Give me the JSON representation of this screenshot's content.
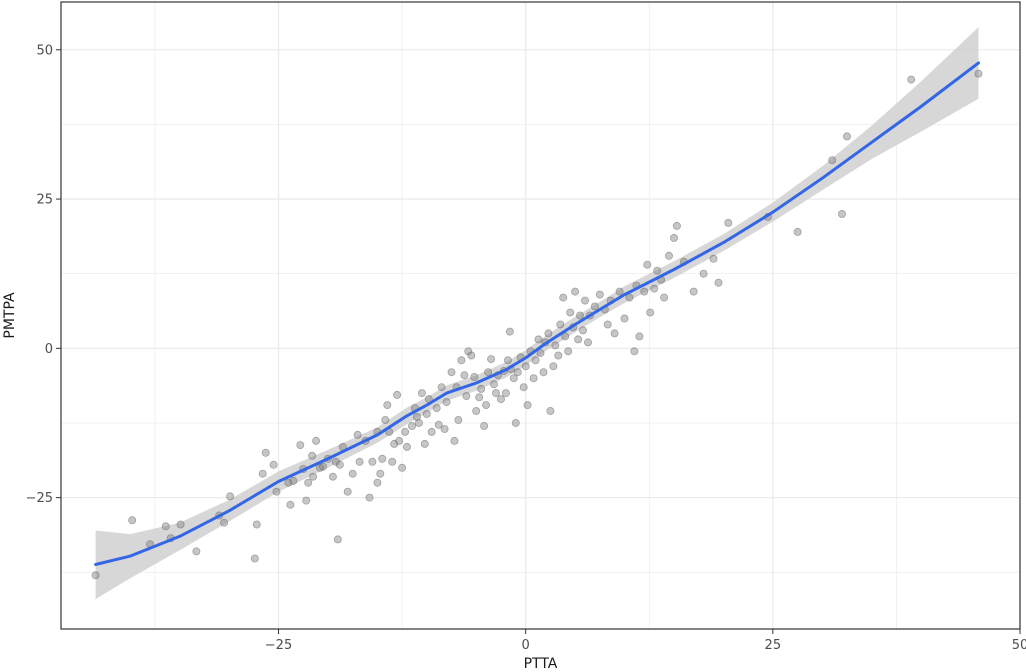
{
  "chart_data": {
    "type": "scatter",
    "title": "",
    "xlabel": "PTTA",
    "ylabel": "PMTPA",
    "xlim": [
      -47,
      50
    ],
    "ylim": [
      -47,
      58
    ],
    "x_ticks": [
      -25,
      0,
      25,
      50
    ],
    "y_ticks": [
      -25,
      0,
      25,
      50
    ],
    "x_tick_labels": [
      "−25",
      "0",
      "25",
      "50"
    ],
    "y_tick_labels": [
      "−25",
      "0",
      "25",
      "50"
    ],
    "grid": true,
    "legend": "none",
    "colors": {
      "points": "#808080",
      "smooth_line": "#3366e6",
      "ribbon": "#d0d0d0",
      "grid": "#ebebeb",
      "panel_border": "#333333"
    },
    "series": [
      {
        "kind": "points",
        "points": [
          [
            -43.5,
            -38.0
          ],
          [
            -39.8,
            -28.8
          ],
          [
            -38.0,
            -32.8
          ],
          [
            -36.4,
            -29.8
          ],
          [
            -35.9,
            -31.8
          ],
          [
            -34.9,
            -29.5
          ],
          [
            -33.3,
            -34.0
          ],
          [
            -31.0,
            -28.0
          ],
          [
            -30.5,
            -29.2
          ],
          [
            -29.9,
            -24.8
          ],
          [
            -27.4,
            -35.2
          ],
          [
            -27.2,
            -29.5
          ],
          [
            -26.6,
            -21.0
          ],
          [
            -26.3,
            -17.5
          ],
          [
            -25.5,
            -19.5
          ],
          [
            -25.2,
            -24.0
          ],
          [
            -24.0,
            -22.5
          ],
          [
            -23.8,
            -26.2
          ],
          [
            -23.5,
            -22.2
          ],
          [
            -22.8,
            -16.2
          ],
          [
            -22.5,
            -20.2
          ],
          [
            -22.2,
            -25.5
          ],
          [
            -22.0,
            -22.5
          ],
          [
            -21.6,
            -18.0
          ],
          [
            -21.5,
            -21.5
          ],
          [
            -21.2,
            -15.5
          ],
          [
            -20.8,
            -20.0
          ],
          [
            -20.5,
            -19.8
          ],
          [
            -20.0,
            -18.5
          ],
          [
            -19.5,
            -21.5
          ],
          [
            -19.2,
            -19.0
          ],
          [
            -19.0,
            -32.0
          ],
          [
            -18.8,
            -19.5
          ],
          [
            -18.5,
            -16.5
          ],
          [
            -18.0,
            -24.0
          ],
          [
            -17.5,
            -21.0
          ],
          [
            -17.0,
            -14.5
          ],
          [
            -16.8,
            -19.0
          ],
          [
            -16.2,
            -15.5
          ],
          [
            -15.8,
            -25.0
          ],
          [
            -15.5,
            -19.0
          ],
          [
            -15.0,
            -14.0
          ],
          [
            -15.0,
            -22.5
          ],
          [
            -14.7,
            -21.0
          ],
          [
            -14.5,
            -18.5
          ],
          [
            -14.2,
            -12.0
          ],
          [
            -14.0,
            -9.5
          ],
          [
            -13.8,
            -14.0
          ],
          [
            -13.5,
            -19.0
          ],
          [
            -13.3,
            -16.0
          ],
          [
            -13.0,
            -7.8
          ],
          [
            -12.8,
            -15.5
          ],
          [
            -12.5,
            -20.0
          ],
          [
            -12.2,
            -14.0
          ],
          [
            -12.0,
            -16.5
          ],
          [
            -11.5,
            -13.0
          ],
          [
            -11.2,
            -10.0
          ],
          [
            -11.0,
            -11.5
          ],
          [
            -10.8,
            -12.5
          ],
          [
            -10.5,
            -7.5
          ],
          [
            -10.2,
            -16.0
          ],
          [
            -10.0,
            -11.0
          ],
          [
            -9.8,
            -8.5
          ],
          [
            -9.5,
            -14.0
          ],
          [
            -9.0,
            -10.0
          ],
          [
            -8.8,
            -12.8
          ],
          [
            -8.5,
            -6.5
          ],
          [
            -8.2,
            -13.5
          ],
          [
            -8.0,
            -9.0
          ],
          [
            -7.5,
            -4.0
          ],
          [
            -7.2,
            -15.5
          ],
          [
            -7.0,
            -6.5
          ],
          [
            -6.8,
            -12.0
          ],
          [
            -6.5,
            -2.0
          ],
          [
            -6.2,
            -4.5
          ],
          [
            -6.0,
            -8.0
          ],
          [
            -5.8,
            -0.5
          ],
          [
            -5.5,
            -1.2
          ],
          [
            -5.2,
            -4.8
          ],
          [
            -5.0,
            -10.5
          ],
          [
            -4.7,
            -8.2
          ],
          [
            -4.5,
            -6.8
          ],
          [
            -4.2,
            -13.0
          ],
          [
            -4.0,
            -9.5
          ],
          [
            -3.8,
            -4.0
          ],
          [
            -3.5,
            -1.8
          ],
          [
            -3.2,
            -6.0
          ],
          [
            -3.0,
            -7.5
          ],
          [
            -2.8,
            -4.5
          ],
          [
            -2.5,
            -8.5
          ],
          [
            -2.2,
            -3.8
          ],
          [
            -2.0,
            -7.5
          ],
          [
            -1.8,
            -2.0
          ],
          [
            -1.6,
            2.8
          ],
          [
            -1.5,
            -3.5
          ],
          [
            -1.2,
            -5.0
          ],
          [
            -1.0,
            -12.5
          ],
          [
            -0.8,
            -4.0
          ],
          [
            -0.5,
            -1.5
          ],
          [
            -0.2,
            -6.5
          ],
          [
            0.0,
            -3.0
          ],
          [
            0.2,
            -9.5
          ],
          [
            0.5,
            -0.5
          ],
          [
            0.8,
            -5.0
          ],
          [
            1.0,
            -2.0
          ],
          [
            1.3,
            1.5
          ],
          [
            1.5,
            -0.8
          ],
          [
            1.8,
            -4.0
          ],
          [
            2.0,
            1.0
          ],
          [
            2.3,
            2.5
          ],
          [
            2.5,
            -10.5
          ],
          [
            2.8,
            -3.0
          ],
          [
            3.0,
            0.5
          ],
          [
            3.3,
            -1.2
          ],
          [
            3.5,
            4.0
          ],
          [
            3.8,
            8.5
          ],
          [
            4.0,
            2.0
          ],
          [
            4.3,
            -0.5
          ],
          [
            4.5,
            6.0
          ],
          [
            4.8,
            3.5
          ],
          [
            5.0,
            9.5
          ],
          [
            5.3,
            1.5
          ],
          [
            5.5,
            5.5
          ],
          [
            5.8,
            3.0
          ],
          [
            6.0,
            8.0
          ],
          [
            6.3,
            1.0
          ],
          [
            6.5,
            5.5
          ],
          [
            7.0,
            7.0
          ],
          [
            7.5,
            9.0
          ],
          [
            8.0,
            6.5
          ],
          [
            8.3,
            4.0
          ],
          [
            8.6,
            8.0
          ],
          [
            9.0,
            2.5
          ],
          [
            9.5,
            9.5
          ],
          [
            10.0,
            5.0
          ],
          [
            10.5,
            8.5
          ],
          [
            11.0,
            -0.5
          ],
          [
            11.2,
            10.5
          ],
          [
            11.5,
            2.0
          ],
          [
            12.0,
            9.5
          ],
          [
            12.3,
            14.0
          ],
          [
            12.6,
            6.0
          ],
          [
            13.0,
            10.0
          ],
          [
            13.3,
            13.0
          ],
          [
            13.7,
            11.5
          ],
          [
            14.0,
            8.5
          ],
          [
            14.5,
            15.5
          ],
          [
            15.0,
            18.5
          ],
          [
            15.3,
            20.5
          ],
          [
            16.0,
            14.5
          ],
          [
            17.0,
            9.5
          ],
          [
            18.0,
            12.5
          ],
          [
            19.0,
            15.0
          ],
          [
            19.5,
            11.0
          ],
          [
            20.5,
            21.0
          ],
          [
            24.5,
            22.0
          ],
          [
            27.5,
            19.5
          ],
          [
            31.0,
            31.5
          ],
          [
            32.0,
            22.5
          ],
          [
            32.5,
            35.5
          ],
          [
            39.0,
            45.0
          ],
          [
            45.8,
            46.0
          ]
        ]
      },
      {
        "kind": "smooth",
        "x": [
          -43.5,
          -40,
          -35,
          -30,
          -25,
          -20,
          -15,
          -12,
          -10,
          -8,
          -5,
          -2,
          0,
          2,
          5,
          8,
          10,
          15,
          20,
          25,
          30,
          35,
          40,
          45.8
        ],
        "y": [
          -36.2,
          -34.8,
          -31.5,
          -27.2,
          -22.3,
          -18.5,
          -14.5,
          -11.3,
          -9.5,
          -7.5,
          -5.8,
          -3.6,
          -1.6,
          0.8,
          4.0,
          7.0,
          9.0,
          13.2,
          17.7,
          22.8,
          28.5,
          34.5,
          40.5,
          47.8
        ],
        "lo": [
          -42.0,
          -38.5,
          -33.8,
          -29.0,
          -24.0,
          -20.0,
          -15.8,
          -12.7,
          -10.8,
          -8.8,
          -7.1,
          -4.9,
          -2.9,
          -0.5,
          2.7,
          5.7,
          7.6,
          11.8,
          16.3,
          21.2,
          26.5,
          31.7,
          36.3,
          41.8
        ],
        "hi": [
          -30.5,
          -31.1,
          -29.2,
          -25.4,
          -20.6,
          -17.0,
          -13.2,
          -9.9,
          -8.2,
          -6.2,
          -4.5,
          -2.3,
          -0.3,
          2.1,
          5.3,
          8.3,
          10.4,
          14.6,
          19.1,
          24.4,
          30.5,
          37.3,
          44.7,
          53.8
        ]
      }
    ]
  }
}
